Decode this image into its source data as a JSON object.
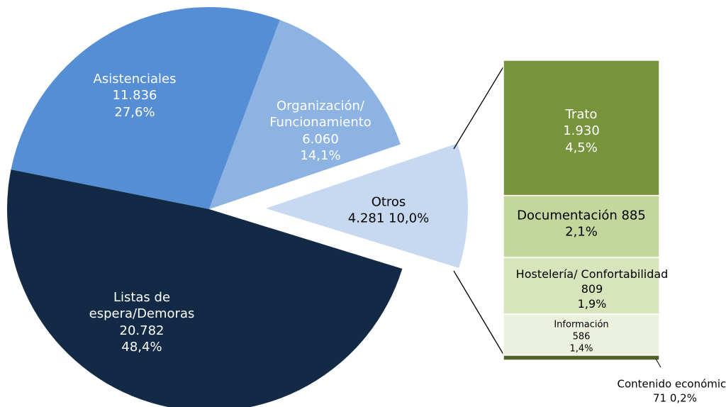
{
  "chart_data": [
    {
      "type": "pie",
      "categories": [
        "Asistenciales",
        "Organización/ Funcionamiento",
        "Otros",
        "Listas de espera/Demoras"
      ],
      "values": [
        11836,
        6060,
        4281,
        20782
      ],
      "value_labels": [
        "11.836",
        "6.060",
        "4.281",
        "20.782"
      ],
      "percentages": [
        27.6,
        14.1,
        10.0,
        48.4
      ],
      "percentage_labels": [
        "27,6%",
        "14,1%",
        "10,0%",
        "48,4%"
      ],
      "colors": [
        "#558ed5",
        "#8db3e2",
        "#c6d9f1",
        "#132a47"
      ]
    },
    {
      "type": "bar",
      "categories": [
        "Trato",
        "Documentación",
        "Hostelería/ Confortabilidad",
        "Información",
        "Contenido económico"
      ],
      "values": [
        1930,
        885,
        809,
        586,
        71
      ],
      "value_labels": [
        "1.930",
        "885",
        "809",
        "586",
        "71"
      ],
      "percentages": [
        4.5,
        2.1,
        1.9,
        1.4,
        0.2
      ],
      "percentage_labels": [
        "4,5%",
        "2,1%",
        "1,9%",
        "1,4%",
        "0,2%"
      ],
      "colors": [
        "#77933c",
        "#c3d69b",
        "#d7e4bc",
        "#ebf1de",
        "#4f6228"
      ]
    }
  ]
}
